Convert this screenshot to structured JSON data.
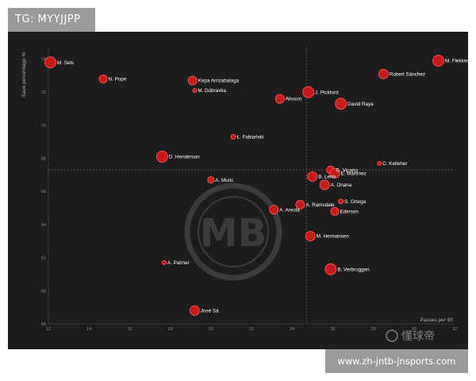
{
  "tag": {
    "text": "TG: MYYJJPP"
  },
  "url": {
    "text": "www.zh-jntb-jnsports.com"
  },
  "watermark": {
    "monogram": "MB",
    "brand": "懂球帝"
  },
  "chart_data": {
    "type": "scatter",
    "title": "",
    "xlabel": "Passes per 90",
    "ylabel": "Save percentage %",
    "xlim": [
      12,
      32
    ],
    "ylim": [
      58,
      74.5
    ],
    "xticks": [
      12,
      14,
      16,
      18,
      20,
      22,
      24,
      26,
      28,
      30,
      32
    ],
    "yticks": [
      58,
      60,
      62,
      64,
      66,
      68,
      70,
      72,
      74
    ],
    "ref_lines": {
      "x": 24.7,
      "y": 67.3
    },
    "grid": false,
    "colors": {
      "point": "#c8191a",
      "point_edge": "#ff4a4a",
      "background": "#1d1d1d"
    },
    "points": [
      {
        "label": "M. Sels",
        "x": 12.1,
        "y": 73.8,
        "size": 7
      },
      {
        "label": "N. Pope",
        "x": 14.7,
        "y": 72.8,
        "size": 5
      },
      {
        "label": "Kepa Arrizabalaga",
        "x": 19.1,
        "y": 72.7,
        "size": 5.5
      },
      {
        "label": "M. Dúbravka",
        "x": 19.2,
        "y": 72.1,
        "size": 2.5
      },
      {
        "label": "M. Flekken",
        "x": 31.2,
        "y": 73.9,
        "size": 7
      },
      {
        "label": "Robert Sánchez",
        "x": 28.5,
        "y": 73.1,
        "size": 6
      },
      {
        "label": "J. Pickford",
        "x": 24.8,
        "y": 72.0,
        "size": 7
      },
      {
        "label": "Alisson",
        "x": 23.4,
        "y": 71.6,
        "size": 5.5
      },
      {
        "label": "David Raya",
        "x": 26.4,
        "y": 71.3,
        "size": 7
      },
      {
        "label": "Ł. Fabiański",
        "x": 21.1,
        "y": 69.3,
        "size": 3
      },
      {
        "label": "D. Henderson",
        "x": 17.6,
        "y": 68.1,
        "size": 7
      },
      {
        "label": "C. Kelleher",
        "x": 28.3,
        "y": 67.7,
        "size": 2.5
      },
      {
        "label": "G. Vicario",
        "x": 25.9,
        "y": 67.3,
        "size": 5
      },
      {
        "label": "E. Martínez",
        "x": 26.1,
        "y": 67.1,
        "size": 6
      },
      {
        "label": "B. Leno",
        "x": 25.0,
        "y": 66.9,
        "size": 6
      },
      {
        "label": "A. Muric",
        "x": 20.0,
        "y": 66.7,
        "size": 4
      },
      {
        "label": "A. Onana",
        "x": 25.6,
        "y": 66.4,
        "size": 6
      },
      {
        "label": "S. Ortega",
        "x": 26.4,
        "y": 65.4,
        "size": 3
      },
      {
        "label": "A. Ramsdale",
        "x": 24.4,
        "y": 65.2,
        "size": 5.5
      },
      {
        "label": "Ederson",
        "x": 26.1,
        "y": 64.8,
        "size": 5
      },
      {
        "label": "A. Areola",
        "x": 23.1,
        "y": 64.9,
        "size": 5.5
      },
      {
        "label": "M. Hermansen",
        "x": 24.9,
        "y": 63.3,
        "size": 6
      },
      {
        "label": "A. Palmer",
        "x": 17.7,
        "y": 61.7,
        "size": 2.5
      },
      {
        "label": "B. Verbruggen",
        "x": 25.9,
        "y": 61.3,
        "size": 7
      },
      {
        "label": "José Sá",
        "x": 19.2,
        "y": 58.8,
        "size": 6
      }
    ]
  }
}
